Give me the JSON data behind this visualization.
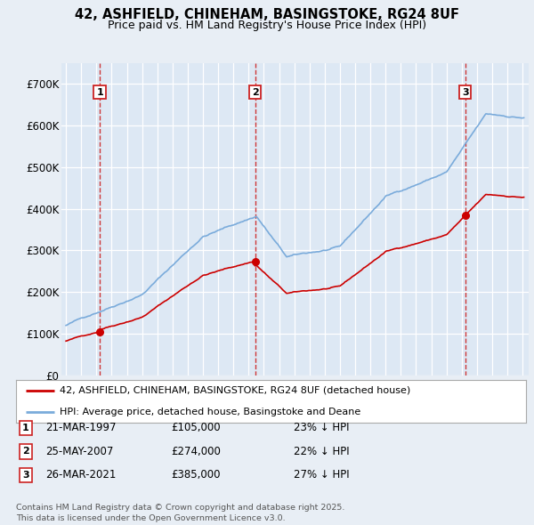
{
  "title1": "42, ASHFIELD, CHINEHAM, BASINGSTOKE, RG24 8UF",
  "title2": "Price paid vs. HM Land Registry's House Price Index (HPI)",
  "background_color": "#e8eef5",
  "plot_bg_color": "#dde8f4",
  "grid_color": "#ffffff",
  "red_line_color": "#cc0000",
  "blue_line_color": "#7aabdb",
  "vline_color": "#cc2222",
  "ylim": [
    0,
    750000
  ],
  "yticks": [
    0,
    100000,
    200000,
    300000,
    400000,
    500000,
    600000,
    700000
  ],
  "ytick_labels": [
    "£0",
    "£100K",
    "£200K",
    "£300K",
    "£400K",
    "£500K",
    "£600K",
    "£700K"
  ],
  "legend_line1": "42, ASHFIELD, CHINEHAM, BASINGSTOKE, RG24 8UF (detached house)",
  "legend_line2": "HPI: Average price, detached house, Basingstoke and Deane",
  "transaction1_label": "1",
  "transaction1_date": "21-MAR-1997",
  "transaction1_price": "£105,000",
  "transaction1_hpi": "23% ↓ HPI",
  "transaction2_label": "2",
  "transaction2_date": "25-MAY-2007",
  "transaction2_price": "£274,000",
  "transaction2_hpi": "22% ↓ HPI",
  "transaction3_label": "3",
  "transaction3_date": "26-MAR-2021",
  "transaction3_price": "£385,000",
  "transaction3_hpi": "27% ↓ HPI",
  "sale_years": [
    1997.22,
    2007.42,
    2021.23
  ],
  "sale_prices": [
    105000,
    274000,
    385000
  ],
  "footer": "Contains HM Land Registry data © Crown copyright and database right 2025.\nThis data is licensed under the Open Government Licence v3.0."
}
